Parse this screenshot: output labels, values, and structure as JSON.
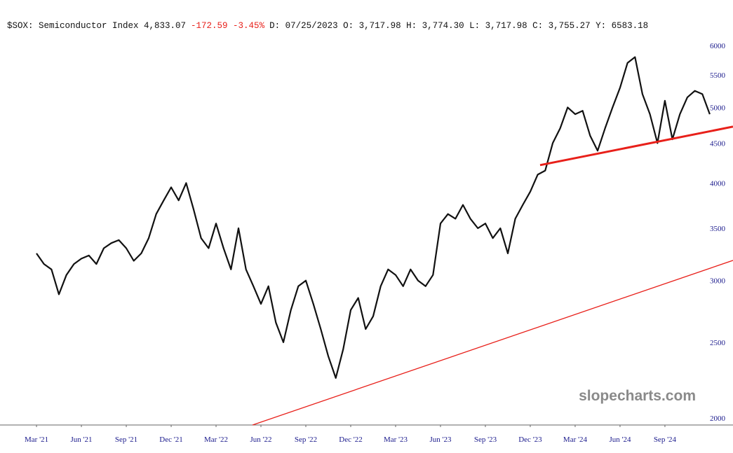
{
  "chart_data": {
    "type": "line",
    "log_scale": true,
    "grid": false,
    "header": [
      {
        "text": "$SOX: Semiconductor Index 4,833.07",
        "color": "#111111"
      },
      {
        "text": "-172.59 -3.45%",
        "color": "#e8201a"
      },
      {
        "text": "D: 07/25/2023 O: 3,717.98 H: 3,774.30 L: 3,717.98 C: 3,755.27 Y:  6583.18",
        "color": "#111111"
      }
    ],
    "watermark": "slopecharts.com",
    "xlim": [
      -0.44,
      48.55
    ],
    "xticks": [
      {
        "value": 2,
        "label": "Mar '21"
      },
      {
        "value": 5,
        "label": "Jun '21"
      },
      {
        "value": 8,
        "label": "Sep '21"
      },
      {
        "value": 11,
        "label": "Dec '21"
      },
      {
        "value": 14,
        "label": "Mar '22"
      },
      {
        "value": 17,
        "label": "Jun '22"
      },
      {
        "value": 20,
        "label": "Sep '22"
      },
      {
        "value": 23,
        "label": "Dec '22"
      },
      {
        "value": 26,
        "label": "Mar '23"
      },
      {
        "value": 29,
        "label": "Jun '23"
      },
      {
        "value": 32,
        "label": "Sep '23"
      },
      {
        "value": 35,
        "label": "Dec '23"
      },
      {
        "value": 38,
        "label": "Mar '24"
      },
      {
        "value": 41,
        "label": "Jun '24"
      },
      {
        "value": 44,
        "label": "Sep '24"
      }
    ],
    "ylim": [
      1959,
      6190
    ],
    "yticks": [
      2000,
      2500,
      3000,
      3500,
      4000,
      4500,
      5000,
      5500,
      6000
    ],
    "series": [
      {
        "color": "#111111",
        "x": [
          2,
          2.5,
          3,
          3.5,
          4,
          4.5,
          5,
          5.5,
          6,
          6.5,
          7,
          7.5,
          8,
          8.5,
          9,
          9.5,
          10,
          10.5,
          11,
          11.5,
          12,
          12.5,
          13,
          13.5,
          14,
          14.5,
          15,
          15.5,
          16,
          16.5,
          17,
          17.5,
          18,
          18.5,
          19,
          19.5,
          20,
          20.5,
          21,
          21.5,
          22,
          22.5,
          23,
          23.5,
          24,
          24.5,
          25,
          25.5,
          26,
          26.5,
          27,
          27.5,
          28,
          28.5,
          29,
          29.5,
          30,
          30.5,
          31,
          31.5,
          32,
          32.5,
          33,
          33.5,
          34,
          34.5,
          35,
          35.5,
          36,
          36.5,
          37,
          37.5,
          38,
          38.5,
          39,
          39.5,
          40,
          40.5,
          41,
          41.5,
          42,
          42.5,
          43,
          43.5,
          44,
          44.5,
          45,
          45.5,
          46,
          46.5,
          47
        ],
        "values": [
          3250,
          3150,
          3100,
          2880,
          3050,
          3150,
          3200,
          3230,
          3150,
          3300,
          3350,
          3380,
          3300,
          3180,
          3250,
          3400,
          3650,
          3800,
          3950,
          3800,
          4000,
          3700,
          3400,
          3300,
          3550,
          3300,
          3100,
          3500,
          3100,
          2950,
          2800,
          2950,
          2650,
          2500,
          2750,
          2950,
          3000,
          2800,
          2600,
          2400,
          2250,
          2450,
          2750,
          2850,
          2600,
          2700,
          2950,
          3100,
          3050,
          2950,
          3100,
          3000,
          2950,
          3050,
          3550,
          3650,
          3600,
          3750,
          3600,
          3500,
          3550,
          3400,
          3500,
          3250,
          3600,
          3750,
          3900,
          4100,
          4150,
          4500,
          4700,
          5000,
          4900,
          4950,
          4600,
          4400,
          4700,
          5000,
          5300,
          5700,
          5800,
          5200,
          4900,
          4500,
          5100,
          4550,
          4900,
          5150,
          5250,
          5200,
          4900
        ]
      }
    ],
    "trendlines": [
      {
        "color": "#e8201a",
        "x": [
          35.66,
          48.55
        ],
        "values": [
          4217,
          4724
        ]
      },
      {
        "color": "#e8201a",
        "x": [
          16.44,
          48.55
        ],
        "values": [
          1959,
          3184
        ]
      }
    ]
  }
}
